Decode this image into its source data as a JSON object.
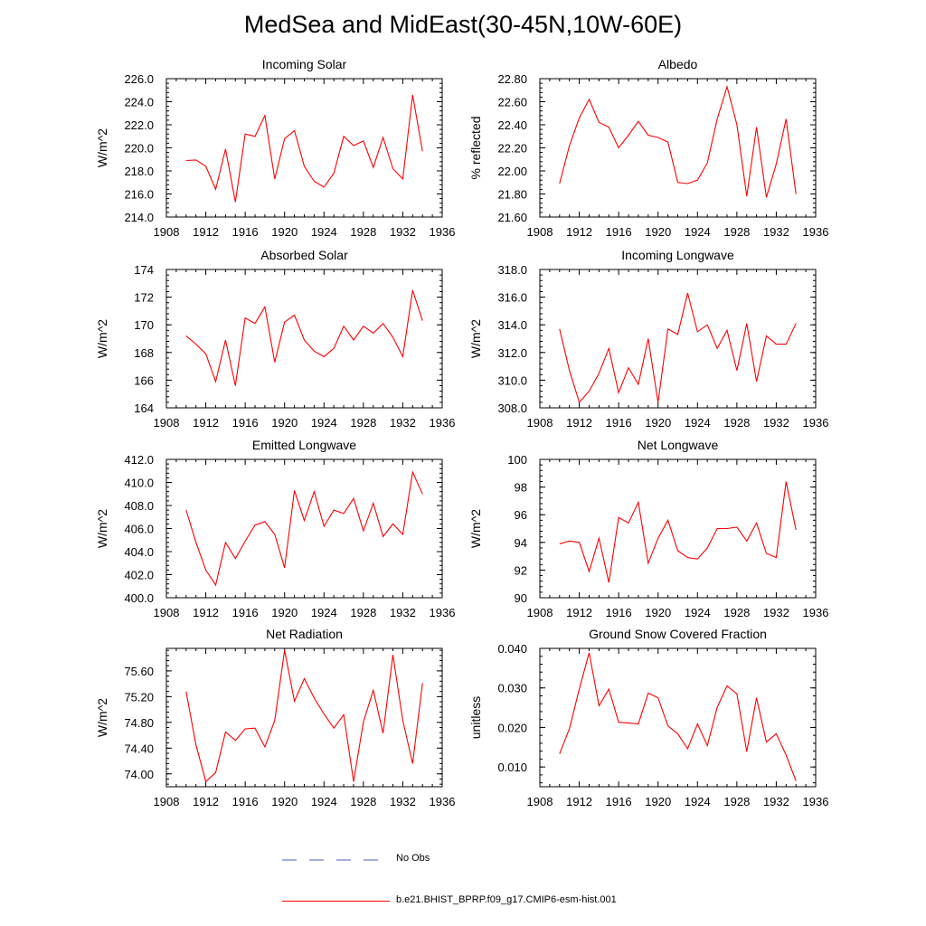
{
  "figure": {
    "title": "MedSea and MidEast(30-45N,10W-60E)",
    "line_color": "#ff0000",
    "noobs_color": "#4a5fc1"
  },
  "legend": {
    "entries": [
      {
        "label": "No Obs",
        "style": "dashed"
      },
      {
        "label": "b.e21.BHIST_BPRP.f09_g17.CMIP6-esm-hist.001",
        "style": "solid"
      }
    ]
  },
  "chart_data": [
    {
      "type": "line",
      "title": "Incoming Solar",
      "ylabel": "W/m^2",
      "xlim": [
        1908,
        1936
      ],
      "ylim": [
        214,
        226
      ],
      "xticks": [
        "1908",
        "1912",
        "1916",
        "1920",
        "1924",
        "1928",
        "1932",
        "1936"
      ],
      "yticks": [
        "214.0",
        "216.0",
        "218.0",
        "220.0",
        "222.0",
        "224.0",
        "226.0"
      ],
      "ytick_values": [
        214,
        216,
        218,
        220,
        222,
        224,
        226
      ],
      "x": [
        1910,
        1911,
        1912,
        1913,
        1914,
        1915,
        1916,
        1917,
        1918,
        1919,
        1920,
        1921,
        1922,
        1923,
        1924,
        1925,
        1926,
        1927,
        1928,
        1929,
        1930,
        1931,
        1932,
        1933,
        1934
      ],
      "series": [
        {
          "values": [
            218.9,
            218.95,
            218.4,
            216.4,
            219.9,
            215.3,
            221.2,
            221.0,
            222.8,
            217.3,
            220.8,
            221.5,
            218.4,
            217.1,
            216.6,
            217.8,
            221.0,
            220.2,
            220.6,
            218.3,
            220.9,
            218.2,
            217.3,
            224.6,
            219.7
          ]
        }
      ]
    },
    {
      "type": "line",
      "title": "Albedo",
      "ylabel": "% reflected",
      "xlim": [
        1908,
        1936
      ],
      "ylim": [
        21.6,
        22.8
      ],
      "xticks": [
        "1908",
        "1912",
        "1916",
        "1920",
        "1924",
        "1928",
        "1932",
        "1936"
      ],
      "yticks": [
        "21.60",
        "21.80",
        "22.00",
        "22.20",
        "22.40",
        "22.60",
        "22.80"
      ],
      "ytick_values": [
        21.6,
        21.8,
        22.0,
        22.2,
        22.4,
        22.6,
        22.8
      ],
      "x": [
        1910,
        1911,
        1912,
        1913,
        1914,
        1915,
        1916,
        1917,
        1918,
        1919,
        1920,
        1921,
        1922,
        1923,
        1924,
        1925,
        1926,
        1927,
        1928,
        1929,
        1930,
        1931,
        1932,
        1933,
        1934
      ],
      "series": [
        {
          "values": [
            21.89,
            22.22,
            22.46,
            22.62,
            22.42,
            22.38,
            22.2,
            22.31,
            22.43,
            22.31,
            22.29,
            22.25,
            21.9,
            21.89,
            21.92,
            22.07,
            22.45,
            22.73,
            22.4,
            21.78,
            22.38,
            21.77,
            22.06,
            22.45,
            21.8
          ]
        }
      ]
    },
    {
      "type": "line",
      "title": "Absorbed Solar",
      "ylabel": "W/m^2",
      "xlim": [
        1908,
        1936
      ],
      "ylim": [
        164,
        174
      ],
      "xticks": [
        "1908",
        "1912",
        "1916",
        "1920",
        "1924",
        "1928",
        "1932",
        "1936"
      ],
      "yticks": [
        "164",
        "166",
        "168",
        "170",
        "172",
        "174"
      ],
      "ytick_values": [
        164,
        166,
        168,
        170,
        172,
        174
      ],
      "x": [
        1910,
        1911,
        1912,
        1913,
        1914,
        1915,
        1916,
        1917,
        1918,
        1919,
        1920,
        1921,
        1922,
        1923,
        1924,
        1925,
        1926,
        1927,
        1928,
        1929,
        1930,
        1931,
        1932,
        1933,
        1934
      ],
      "series": [
        {
          "values": [
            169.2,
            168.6,
            167.9,
            165.9,
            168.9,
            165.6,
            170.5,
            170.1,
            171.3,
            167.3,
            170.2,
            170.7,
            168.9,
            168.1,
            167.7,
            168.3,
            169.9,
            168.9,
            169.9,
            169.4,
            170.1,
            169.1,
            167.7,
            172.5,
            170.3
          ]
        }
      ]
    },
    {
      "type": "line",
      "title": "Incoming Longwave",
      "ylabel": "W/m^2",
      "xlim": [
        1908,
        1936
      ],
      "ylim": [
        308,
        318
      ],
      "xticks": [
        "1908",
        "1912",
        "1916",
        "1920",
        "1924",
        "1928",
        "1932",
        "1936"
      ],
      "yticks": [
        "308.0",
        "310.0",
        "312.0",
        "314.0",
        "316.0",
        "318.0"
      ],
      "ytick_values": [
        308,
        310,
        312,
        314,
        316,
        318
      ],
      "x": [
        1910,
        1911,
        1912,
        1913,
        1914,
        1915,
        1916,
        1917,
        1918,
        1919,
        1920,
        1921,
        1922,
        1923,
        1924,
        1925,
        1926,
        1927,
        1928,
        1929,
        1930,
        1931,
        1932,
        1933,
        1934
      ],
      "series": [
        {
          "values": [
            313.7,
            310.7,
            308.4,
            309.2,
            310.5,
            312.3,
            309.1,
            310.9,
            309.7,
            313.0,
            308.4,
            313.7,
            313.3,
            316.3,
            313.5,
            314.0,
            312.3,
            313.6,
            310.7,
            314.1,
            309.9,
            313.2,
            312.6,
            312.6,
            314.1
          ]
        }
      ]
    },
    {
      "type": "line",
      "title": "Emitted Longwave",
      "ylabel": "W/m^2",
      "xlim": [
        1908,
        1936
      ],
      "ylim": [
        400,
        412
      ],
      "xticks": [
        "1908",
        "1912",
        "1916",
        "1920",
        "1924",
        "1928",
        "1932",
        "1936"
      ],
      "yticks": [
        "400.0",
        "402.0",
        "404.0",
        "406.0",
        "408.0",
        "410.0",
        "412.0"
      ],
      "ytick_values": [
        400,
        402,
        404,
        406,
        408,
        410,
        412
      ],
      "x": [
        1910,
        1911,
        1912,
        1913,
        1914,
        1915,
        1916,
        1917,
        1918,
        1919,
        1920,
        1921,
        1922,
        1923,
        1924,
        1925,
        1926,
        1927,
        1928,
        1929,
        1930,
        1931,
        1932,
        1933,
        1934
      ],
      "series": [
        {
          "values": [
            407.6,
            404.8,
            402.4,
            401.1,
            404.8,
            403.4,
            404.9,
            406.3,
            406.6,
            405.5,
            402.6,
            409.3,
            406.7,
            409.2,
            406.2,
            407.6,
            407.3,
            408.6,
            405.8,
            408.2,
            405.3,
            406.4,
            405.5,
            410.9,
            409.0
          ]
        }
      ]
    },
    {
      "type": "line",
      "title": "Net Longwave",
      "ylabel": "W/m^2",
      "xlim": [
        1908,
        1936
      ],
      "ylim": [
        90,
        100
      ],
      "xticks": [
        "1908",
        "1912",
        "1916",
        "1920",
        "1924",
        "1928",
        "1932",
        "1936"
      ],
      "yticks": [
        "90",
        "92",
        "94",
        "96",
        "98",
        "100"
      ],
      "ytick_values": [
        90,
        92,
        94,
        96,
        98,
        100
      ],
      "x": [
        1910,
        1911,
        1912,
        1913,
        1914,
        1915,
        1916,
        1917,
        1918,
        1919,
        1920,
        1921,
        1922,
        1923,
        1924,
        1925,
        1926,
        1927,
        1928,
        1929,
        1930,
        1931,
        1932,
        1933,
        1934
      ],
      "series": [
        {
          "values": [
            93.9,
            94.1,
            94.0,
            91.9,
            94.3,
            91.1,
            95.8,
            95.4,
            96.9,
            92.5,
            94.3,
            95.6,
            93.4,
            92.9,
            92.8,
            93.6,
            95.0,
            95.0,
            95.1,
            94.1,
            95.4,
            93.2,
            92.9,
            98.4,
            94.9
          ]
        }
      ]
    },
    {
      "type": "line",
      "title": "Net Radiation",
      "ylabel": "W/m^2",
      "xlim": [
        1908,
        1936
      ],
      "ylim": [
        73.8,
        75.95
      ],
      "xticks": [
        "1908",
        "1912",
        "1916",
        "1920",
        "1924",
        "1928",
        "1932",
        "1936"
      ],
      "yticks": [
        "74.00",
        "74.40",
        "74.80",
        "75.20",
        "75.60"
      ],
      "ytick_values": [
        74.0,
        74.4,
        74.8,
        75.2,
        75.6
      ],
      "x": [
        1910,
        1911,
        1912,
        1913,
        1914,
        1915,
        1916,
        1917,
        1918,
        1919,
        1920,
        1921,
        1922,
        1923,
        1924,
        1925,
        1926,
        1927,
        1928,
        1929,
        1930,
        1931,
        1932,
        1933,
        1934
      ],
      "series": [
        {
          "values": [
            75.28,
            74.45,
            73.88,
            74.02,
            74.65,
            74.52,
            74.7,
            74.71,
            74.42,
            74.83,
            75.92,
            75.13,
            75.48,
            75.18,
            74.93,
            74.71,
            74.92,
            73.88,
            74.81,
            75.3,
            74.63,
            75.85,
            74.83,
            74.16,
            75.41
          ]
        }
      ]
    },
    {
      "type": "line",
      "title": "Ground Snow Covered Fraction",
      "ylabel": "unitless",
      "xlim": [
        1908,
        1936
      ],
      "ylim": [
        0.005,
        0.04
      ],
      "xticks": [
        "1908",
        "1912",
        "1916",
        "1920",
        "1924",
        "1928",
        "1932",
        "1936"
      ],
      "yticks": [
        "0.010",
        "0.020",
        "0.030",
        "0.040"
      ],
      "ytick_values": [
        0.01,
        0.02,
        0.03,
        0.04
      ],
      "x": [
        1910,
        1911,
        1912,
        1913,
        1914,
        1915,
        1916,
        1917,
        1918,
        1919,
        1920,
        1921,
        1922,
        1923,
        1924,
        1925,
        1926,
        1927,
        1928,
        1929,
        1930,
        1931,
        1932,
        1933,
        1934
      ],
      "series": [
        {
          "values": [
            0.0133,
            0.0197,
            0.0297,
            0.0389,
            0.0255,
            0.0297,
            0.0213,
            0.0211,
            0.0209,
            0.0287,
            0.0275,
            0.0204,
            0.0184,
            0.0146,
            0.0209,
            0.0154,
            0.0251,
            0.0305,
            0.0285,
            0.0139,
            0.0275,
            0.0163,
            0.0184,
            0.013,
            0.0065
          ]
        }
      ]
    }
  ]
}
